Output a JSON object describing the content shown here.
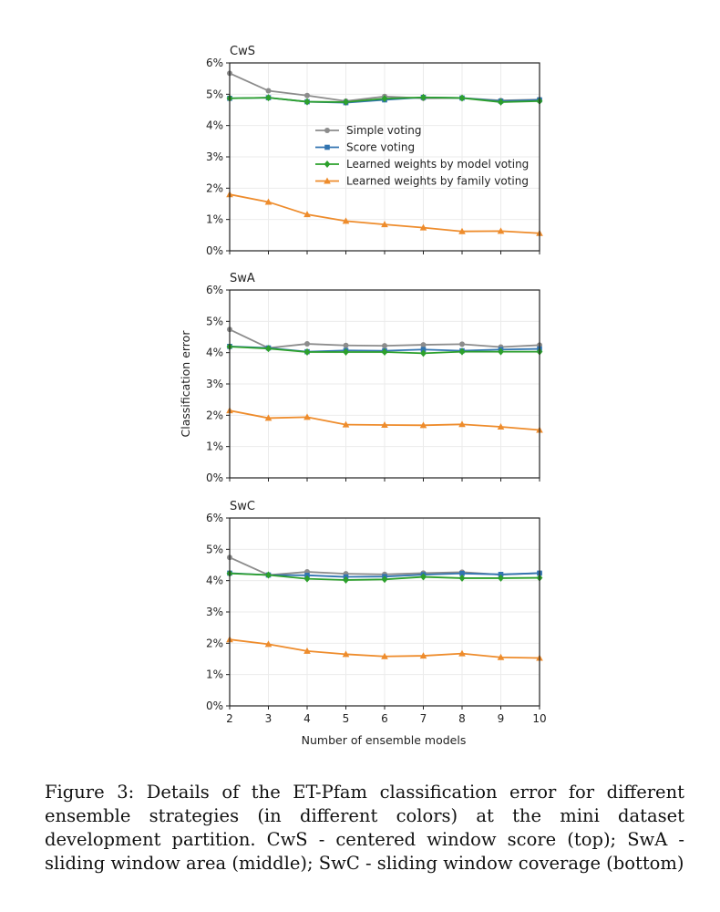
{
  "colors": {
    "simple": "#8c8c8c",
    "score": "#3274b0",
    "model": "#2ca02c",
    "family": "#ee8c2c"
  },
  "chart_data": {
    "type": "line",
    "xlabel": "Number of ensemble models",
    "ylabel": "Classification error",
    "x": [
      2,
      3,
      4,
      5,
      6,
      7,
      8,
      9,
      10
    ],
    "xlim": [
      2,
      10
    ],
    "ylim": [
      0,
      6
    ],
    "yticks": [
      "0%",
      "1%",
      "2%",
      "3%",
      "4%",
      "5%",
      "6%"
    ],
    "grid": true,
    "legend_entries": [
      "Simple voting",
      "Score voting",
      "Learned weights by model voting",
      "Learned weights by family voting"
    ],
    "panels": [
      {
        "title": "CwS",
        "series": [
          {
            "name": "Simple voting",
            "values": [
              5.67,
              5.11,
              4.96,
              4.78,
              4.93,
              4.87,
              4.88,
              4.8,
              4.83
            ]
          },
          {
            "name": "Score voting",
            "values": [
              4.87,
              4.89,
              4.76,
              4.73,
              4.82,
              4.9,
              4.88,
              4.78,
              4.82
            ]
          },
          {
            "name": "Learned weights by model voting",
            "values": [
              4.87,
              4.89,
              4.76,
              4.75,
              4.86,
              4.9,
              4.88,
              4.75,
              4.78
            ]
          },
          {
            "name": "Learned weights by family voting",
            "values": [
              1.8,
              1.56,
              1.16,
              0.95,
              0.84,
              0.74,
              0.62,
              0.63,
              0.56
            ]
          }
        ]
      },
      {
        "title": "SwA",
        "series": [
          {
            "name": "Simple voting",
            "values": [
              4.74,
              4.15,
              4.28,
              4.23,
              4.22,
              4.25,
              4.27,
              4.18,
              4.24
            ]
          },
          {
            "name": "Score voting",
            "values": [
              4.2,
              4.15,
              4.03,
              4.07,
              4.06,
              4.1,
              4.06,
              4.1,
              4.12
            ]
          },
          {
            "name": "Learned weights by model voting",
            "values": [
              4.19,
              4.13,
              4.02,
              4.02,
              4.02,
              3.98,
              4.03,
              4.03,
              4.03
            ]
          },
          {
            "name": "Learned weights by family voting",
            "values": [
              2.15,
              1.91,
              1.94,
              1.7,
              1.69,
              1.68,
              1.71,
              1.63,
              1.53
            ]
          }
        ]
      },
      {
        "title": "SwC",
        "series": [
          {
            "name": "Simple voting",
            "values": [
              4.74,
              4.18,
              4.28,
              4.22,
              4.2,
              4.24,
              4.27,
              4.19,
              4.24
            ]
          },
          {
            "name": "Score voting",
            "values": [
              4.24,
              4.18,
              4.17,
              4.12,
              4.13,
              4.19,
              4.23,
              4.2,
              4.24
            ]
          },
          {
            "name": "Learned weights by model voting",
            "values": [
              4.23,
              4.18,
              4.06,
              4.02,
              4.04,
              4.12,
              4.08,
              4.08,
              4.09
            ]
          },
          {
            "name": "Learned weights by family voting",
            "values": [
              2.12,
              1.97,
              1.75,
              1.65,
              1.58,
              1.6,
              1.67,
              1.55,
              1.53
            ]
          }
        ]
      }
    ]
  },
  "caption": "Figure 3: Details of the ET-Pfam classification error for different ensemble strategies (in different colors) at the mini dataset development partition. CwS - centered window score (top); SwA - sliding window area (middle); SwC - sliding window coverage (bottom)"
}
